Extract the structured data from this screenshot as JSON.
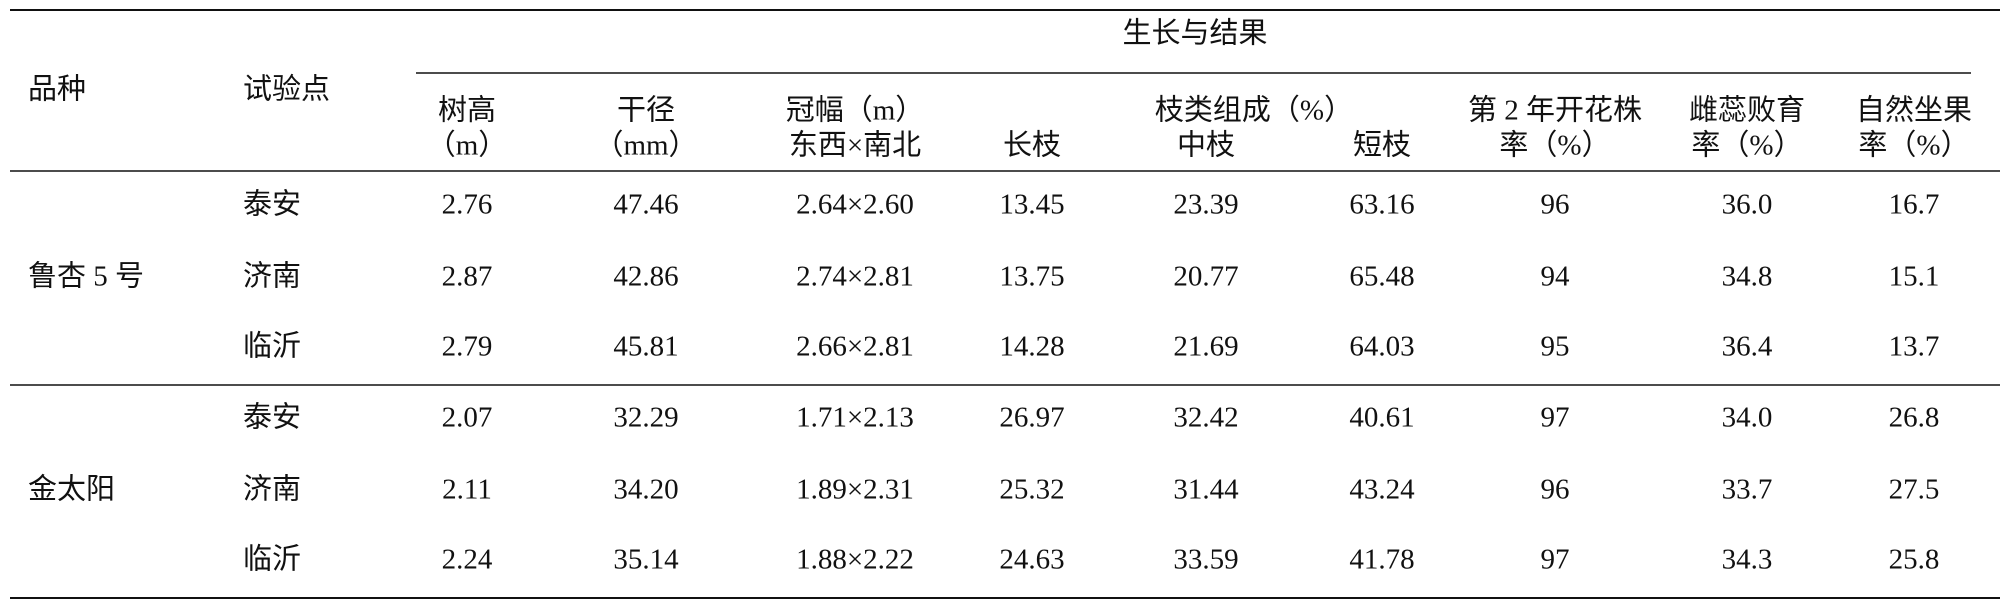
{
  "header": {
    "variety": "品种",
    "site": "试验点",
    "group": "生长与结果",
    "branch_group": "枝类组成（%）",
    "columns": [
      [
        "树高",
        "（m）"
      ],
      [
        "干径",
        "（mm）"
      ],
      [
        "冠幅（m）",
        "东西×南北"
      ],
      [
        "长枝"
      ],
      [
        "中枝"
      ],
      [
        "短枝"
      ],
      [
        "第 2 年开花株",
        "率（%）"
      ],
      [
        "雌蕊败育",
        "率（%）"
      ],
      [
        "自然坐果",
        "率（%）"
      ]
    ]
  },
  "rows": [
    {
      "variety": "鲁杏 5 号",
      "sites": [
        {
          "site": "泰安",
          "cells": [
            "2.76",
            "47.46",
            "2.64×2.60",
            "13.45",
            "23.39",
            "63.16",
            "96",
            "36.0",
            "16.7"
          ]
        },
        {
          "site": "济南",
          "cells": [
            "2.87",
            "42.86",
            "2.74×2.81",
            "13.75",
            "20.77",
            "65.48",
            "94",
            "34.8",
            "15.1"
          ]
        },
        {
          "site": "临沂",
          "cells": [
            "2.79",
            "45.81",
            "2.66×2.81",
            "14.28",
            "21.69",
            "64.03",
            "95",
            "36.4",
            "13.7"
          ]
        }
      ]
    },
    {
      "variety": "金太阳",
      "sites": [
        {
          "site": "泰安",
          "cells": [
            "2.07",
            "32.29",
            "1.71×2.13",
            "26.97",
            "32.42",
            "40.61",
            "97",
            "34.0",
            "26.8"
          ]
        },
        {
          "site": "济南",
          "cells": [
            "2.11",
            "34.20",
            "1.89×2.31",
            "25.32",
            "31.44",
            "43.24",
            "96",
            "33.7",
            "27.5"
          ]
        },
        {
          "site": "临沂",
          "cells": [
            "2.24",
            "35.14",
            "1.88×2.22",
            "24.63",
            "33.59",
            "41.78",
            "97",
            "34.3",
            "25.8"
          ]
        }
      ]
    }
  ]
}
